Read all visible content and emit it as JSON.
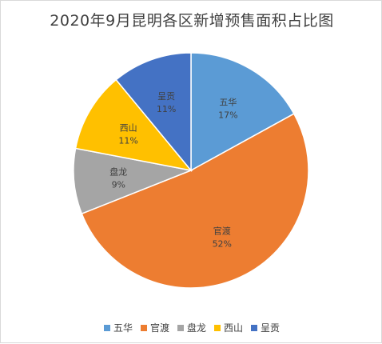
{
  "chart_data": {
    "type": "pie",
    "title": "2020年9月昆明各区新增预售面积占比图",
    "slices": [
      {
        "name": "五华",
        "value": 17,
        "label": "17%",
        "color": "#5b9bd5"
      },
      {
        "name": "官渡",
        "value": 52,
        "label": "52%",
        "color": "#ed7d31"
      },
      {
        "name": "盘龙",
        "value": 9,
        "label": "9%",
        "color": "#a5a5a5"
      },
      {
        "name": "西山",
        "value": 11,
        "label": "11%",
        "color": "#ffc000"
      },
      {
        "name": "呈贡",
        "value": 11,
        "label": "11%",
        "color": "#4472c4"
      }
    ],
    "legend": {
      "position": "bottom"
    }
  }
}
